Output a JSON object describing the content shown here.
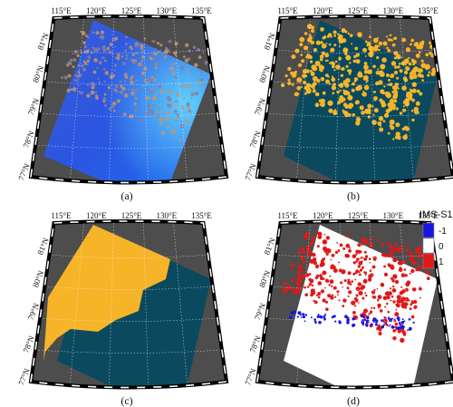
{
  "lon_labels": [
    "115°E",
    "120°E",
    "125°E",
    "130°E",
    "135°E"
  ],
  "lat_labels": [
    "81°N",
    "80°N",
    "79°N",
    "78°N",
    "77°N"
  ],
  "panels": [
    {
      "id": "a",
      "label": "(a)",
      "content": "false-color-image"
    },
    {
      "id": "b",
      "label": "(b)",
      "content": "ice-classification"
    },
    {
      "id": "c",
      "label": "(c)",
      "content": "ims-ice-mask"
    },
    {
      "id": "d",
      "label": "(d)",
      "content": "difference-map"
    }
  ],
  "legend": {
    "title": "IMS-S1",
    "entries": [
      {
        "label": "-1",
        "color": "#1616e0"
      },
      {
        "label": "0",
        "color": "#ffffff"
      },
      {
        "label": "1",
        "color": "#e01818"
      }
    ]
  },
  "colors": {
    "map_background": "#4d4d4d",
    "sea_ice": "#f6b428",
    "open_water": "#0b4a5e",
    "frame": "#000000"
  }
}
